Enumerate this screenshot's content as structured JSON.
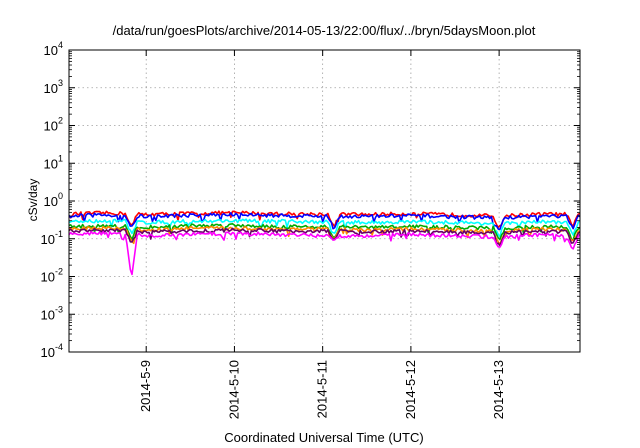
{
  "chart_data": {
    "type": "line",
    "title": "/data/run/goesPlots/archive/2014-05-13/22:00/flux/../bryn/5daysMoon.plot",
    "xlabel": "Coordinated Universal Time (UTC)",
    "ylabel": "cSv/day",
    "yscale": "log",
    "xlim": [
      "2014-05-08 03:00",
      "2014-05-13 22:00"
    ],
    "ylim": [
      0.0001,
      10000
    ],
    "x_ticks": [
      "2014-5-9",
      "2014-5-10",
      "2014-5-11",
      "2014-5-12",
      "2014-5-13"
    ],
    "y_ticks": [
      {
        "base": "10",
        "exp": "-4"
      },
      {
        "base": "10",
        "exp": "-3"
      },
      {
        "base": "10",
        "exp": "-2"
      },
      {
        "base": "10",
        "exp": "-1"
      },
      {
        "base": "10",
        "exp": "0"
      },
      {
        "base": "10",
        "exp": "1"
      },
      {
        "base": "10",
        "exp": "2"
      },
      {
        "base": "10",
        "exp": "3"
      },
      {
        "base": "10",
        "exp": "4"
      }
    ],
    "grid": true,
    "x": [
      "2014-05-08 03:00",
      "2014-05-08 12:00",
      "2014-05-08 20:00",
      "2014-05-09 00:00",
      "2014-05-09 12:00",
      "2014-05-10 00:00",
      "2014-05-10 12:00",
      "2014-05-11 00:00",
      "2014-05-11 12:00",
      "2014-05-12 00:00",
      "2014-05-12 12:00",
      "2014-05-13 00:00",
      "2014-05-13 12:00",
      "2014-05-13 22:00"
    ],
    "series": [
      {
        "color": "#ff0000",
        "values": [
          0.45,
          0.48,
          0.46,
          0.44,
          0.47,
          0.49,
          0.46,
          0.45,
          0.44,
          0.46,
          0.43,
          0.4,
          0.45,
          0.44
        ]
      },
      {
        "color": "#0000ff",
        "values": [
          0.4,
          0.43,
          0.41,
          0.39,
          0.42,
          0.44,
          0.41,
          0.4,
          0.39,
          0.41,
          0.38,
          0.36,
          0.4,
          0.39
        ]
      },
      {
        "color": "#00ffff",
        "values": [
          0.28,
          0.3,
          0.29,
          0.27,
          0.29,
          0.3,
          0.29,
          0.28,
          0.27,
          0.28,
          0.27,
          0.25,
          0.28,
          0.27
        ]
      },
      {
        "color": "#00aa00",
        "values": [
          0.21,
          0.22,
          0.21,
          0.2,
          0.22,
          0.23,
          0.21,
          0.21,
          0.2,
          0.21,
          0.2,
          0.19,
          0.21,
          0.2
        ]
      },
      {
        "color": "#ff8800",
        "values": [
          0.18,
          0.19,
          0.18,
          0.17,
          0.19,
          0.19,
          0.18,
          0.18,
          0.17,
          0.18,
          0.17,
          0.16,
          0.18,
          0.17
        ]
      },
      {
        "color": "#660066",
        "values": [
          0.16,
          0.17,
          0.16,
          0.15,
          0.16,
          0.17,
          0.16,
          0.16,
          0.15,
          0.16,
          0.15,
          0.14,
          0.16,
          0.15
        ]
      },
      {
        "color": "#ff00ff",
        "values": [
          0.13,
          0.14,
          0.13,
          0.12,
          0.13,
          0.14,
          0.13,
          0.12,
          0.12,
          0.13,
          0.12,
          0.11,
          0.13,
          0.12
        ]
      }
    ],
    "dips": [
      {
        "x": "2014-05-08 20:00",
        "y": 0.009
      },
      {
        "x": "2014-05-11 03:00",
        "y": 0.09
      },
      {
        "x": "2014-05-13 00:00",
        "y": 0.055
      },
      {
        "x": "2014-05-13 20:00",
        "y": 0.05
      }
    ]
  }
}
